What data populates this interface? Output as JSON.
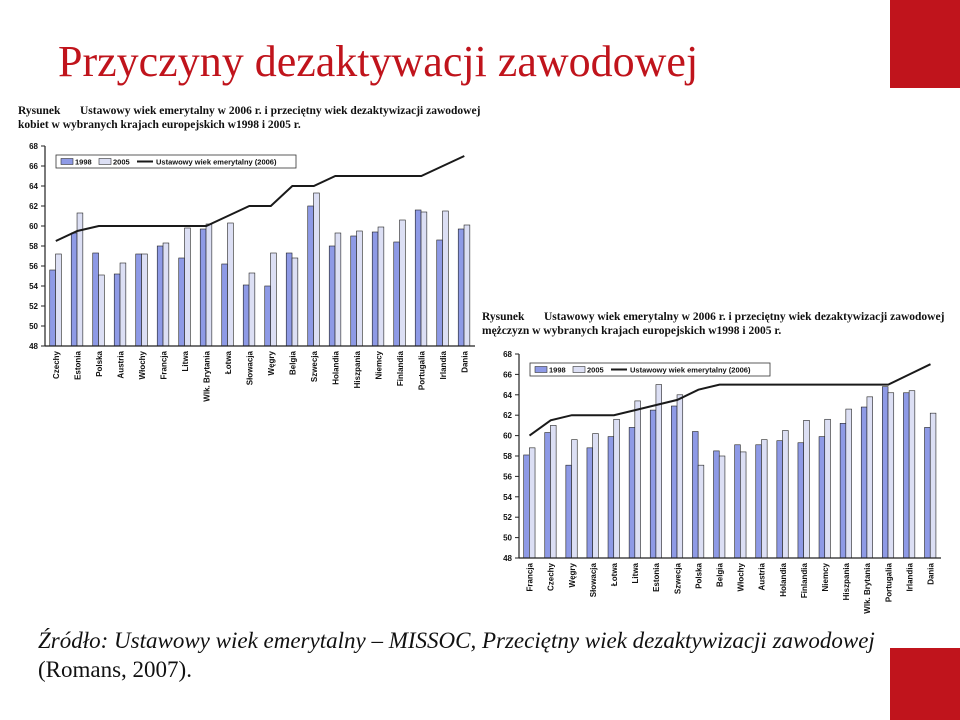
{
  "slide": {
    "title": "Przyczyny dezaktywacji zawodowej",
    "source_italic": "Źródło: Ustawowy wiek emerytalny – MISSOC, Przeciętny wiek dezaktywizacji zawodowej",
    "source_upright": " (Romans, 2007).",
    "accent_color": "#c0141c"
  },
  "chart_data": [
    {
      "type": "bar",
      "caption_lead": "Rysunek",
      "caption_line1": "Ustawowy wiek emerytalny w 2006 r. i przeciętny wiek dezaktywizacji zawodowej",
      "caption_line2": "kobiet w wybranych krajach europejskich w1998 i 2005 r.",
      "categories": [
        "Czechy",
        "Estonia",
        "Polska",
        "Austria",
        "Włochy",
        "Francja",
        "Litwa",
        "Wlk. Brytania",
        "Łotwa",
        "Słowacja",
        "Węgry",
        "Belgia",
        "Szwecja",
        "Holandia",
        "Hiszpania",
        "Niemcy",
        "Finlandia",
        "Portugalia",
        "Irlandia",
        "Dania"
      ],
      "series": [
        {
          "name": "1998",
          "type": "bar",
          "values": [
            55.6,
            59.3,
            57.3,
            55.2,
            57.2,
            58.0,
            56.8,
            59.7,
            56.2,
            54.1,
            54.0,
            57.3,
            62.0,
            58.0,
            59.0,
            59.4,
            58.4,
            61.6,
            58.6,
            59.7
          ]
        },
        {
          "name": "2005",
          "type": "bar",
          "values": [
            57.2,
            61.3,
            55.1,
            56.3,
            57.2,
            58.3,
            59.8,
            60.2,
            60.3,
            55.3,
            57.3,
            56.8,
            63.3,
            59.3,
            59.5,
            59.9,
            60.6,
            61.4,
            61.5,
            60.1
          ]
        },
        {
          "name": "Ustawowy wiek emerytalny (2006)",
          "type": "line",
          "values": [
            58.5,
            59.5,
            60,
            60,
            60,
            60,
            60,
            60,
            61,
            62,
            62,
            64,
            64,
            65,
            65,
            65,
            65,
            65,
            66,
            67
          ]
        }
      ],
      "ylim": [
        48,
        68
      ],
      "yticks": [
        48,
        50,
        52,
        54,
        56,
        58,
        60,
        62,
        64,
        66,
        68
      ],
      "colors": {
        "bar1998": "#8e9ae6",
        "bar2005": "#dcdff4",
        "line": "#1a1a1a",
        "bar_edge": "#222"
      },
      "legend": "top-left",
      "grid": false
    },
    {
      "type": "bar",
      "caption_lead": "Rysunek",
      "caption_line1": "Ustawowy wiek emerytalny w 2006 r. i przeciętny wiek dezaktywizacji zawodowej",
      "caption_line2": "mężczyzn w wybranych krajach europejskich w1998 i 2005 r.",
      "categories": [
        "Francja",
        "Czechy",
        "Węgry",
        "Słowacja",
        "Łotwa",
        "Litwa",
        "Estonia",
        "Szwecja",
        "Polska",
        "Belgia",
        "Włochy",
        "Austria",
        "Holandia",
        "Finlandia",
        "Niemcy",
        "Hiszpania",
        "Wlk. Brytania",
        "Portugalia",
        "Irlandia",
        "Dania"
      ],
      "series": [
        {
          "name": "1998",
          "type": "bar",
          "values": [
            58.1,
            60.3,
            57.1,
            58.8,
            59.9,
            60.8,
            62.5,
            62.9,
            60.4,
            58.5,
            59.1,
            59.1,
            59.5,
            59.3,
            59.9,
            61.2,
            62.8,
            64.8,
            64.2,
            60.8
          ]
        },
        {
          "name": "2005",
          "type": "bar",
          "values": [
            58.8,
            61.0,
            59.6,
            60.2,
            61.6,
            63.4,
            65.0,
            64.0,
            57.1,
            58.0,
            58.4,
            59.6,
            60.5,
            61.5,
            61.6,
            62.6,
            63.8,
            64.2,
            64.4,
            62.2
          ]
        },
        {
          "name": "Ustawowy wiek emerytalny (2006)",
          "type": "line",
          "values": [
            60,
            61.5,
            62,
            62,
            62,
            62.5,
            63,
            63.5,
            64.5,
            65,
            65,
            65,
            65,
            65,
            65,
            65,
            65,
            65,
            66,
            67
          ]
        }
      ],
      "ylim": [
        48,
        68
      ],
      "yticks": [
        48,
        50,
        52,
        54,
        56,
        58,
        60,
        62,
        64,
        66,
        68
      ],
      "colors": {
        "bar1998": "#8e9ae6",
        "bar2005": "#dcdff4",
        "line": "#1a1a1a",
        "bar_edge": "#222"
      },
      "legend": "top-left",
      "grid": false
    }
  ]
}
